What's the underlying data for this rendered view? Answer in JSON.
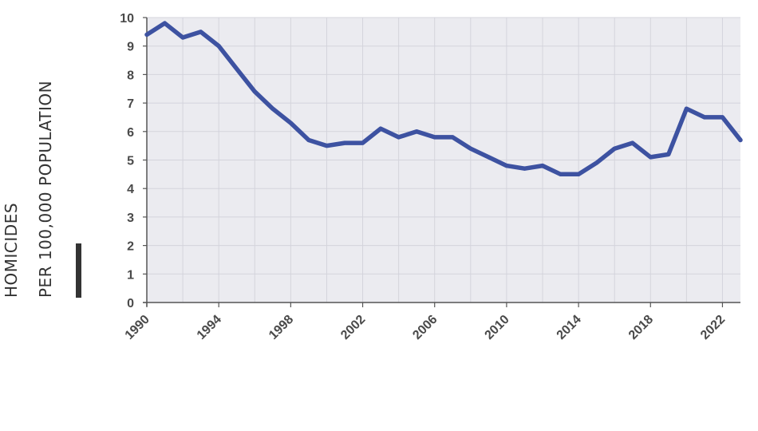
{
  "chart_data": {
    "type": "line",
    "title": "",
    "xlabel": "",
    "ylabel_lines": [
      "HOMICIDES",
      "PER 100,000 POPULATION"
    ],
    "xlim": [
      1990,
      2023
    ],
    "ylim": [
      0,
      10
    ],
    "x_ticks": [
      1990,
      1994,
      1998,
      2002,
      2006,
      2010,
      2014,
      2018,
      2022
    ],
    "y_ticks": [
      0,
      1,
      2,
      3,
      4,
      5,
      6,
      7,
      8,
      9,
      10
    ],
    "grid": true,
    "colors": {
      "line": "#3d52a1",
      "plot_background": "#ebebf0",
      "grid": "#d4d4dc",
      "axis": "#555555",
      "ylabel_bar": "#333333"
    },
    "series": [
      {
        "x": [
          1990,
          1991,
          1992,
          1993,
          1994,
          1995,
          1996,
          1997,
          1998,
          1999,
          2000,
          2001,
          2002,
          2003,
          2004,
          2005,
          2006,
          2007,
          2008,
          2009,
          2010,
          2011,
          2012,
          2013,
          2014,
          2015,
          2016,
          2017,
          2018,
          2019,
          2020,
          2021,
          2022,
          2023
        ],
        "values": [
          9.4,
          9.8,
          9.3,
          9.5,
          9.0,
          8.2,
          7.4,
          6.8,
          6.3,
          5.7,
          5.5,
          5.6,
          5.6,
          6.1,
          5.8,
          6.0,
          5.8,
          5.8,
          5.4,
          5.1,
          4.8,
          4.7,
          4.8,
          4.5,
          4.5,
          4.9,
          5.4,
          5.6,
          5.1,
          5.2,
          6.8,
          6.5,
          6.5,
          5.7
        ]
      }
    ]
  }
}
